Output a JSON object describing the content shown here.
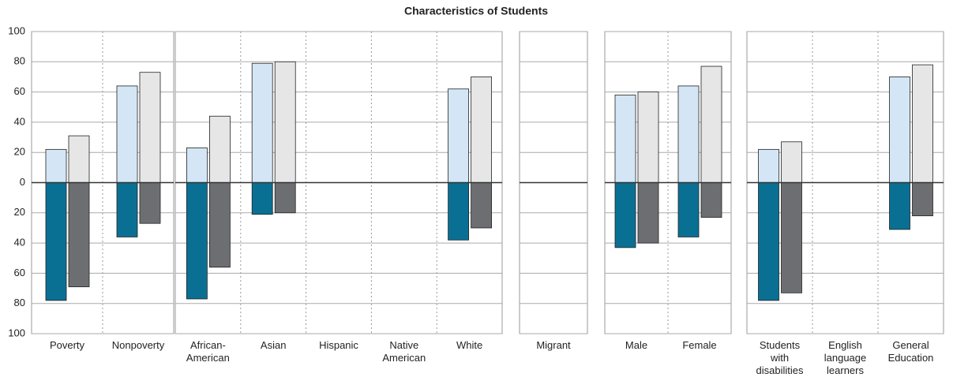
{
  "chart_data": {
    "type": "bar",
    "title": "Characteristics of Students",
    "ylim": [
      -100,
      100
    ],
    "yticks": [
      {
        "value": -100,
        "label": "100"
      },
      {
        "value": -80,
        "label": "80"
      },
      {
        "value": -60,
        "label": "60"
      },
      {
        "value": -40,
        "label": "40"
      },
      {
        "value": -20,
        "label": "20"
      },
      0,
      20,
      40,
      60,
      80,
      100
    ],
    "grid": true,
    "panels": [
      {
        "categories": [
          "Poverty",
          "Nonpoverty"
        ],
        "series": [
          {
            "color": "#d4e6f5",
            "values": [
              22,
              64
            ]
          },
          {
            "color": "#e6e6e6",
            "values": [
              31,
              73
            ]
          },
          {
            "color": "#0a7093",
            "values": [
              -78,
              -36
            ]
          },
          {
            "color": "#6d6e71",
            "values": [
              -69,
              -27
            ]
          }
        ]
      },
      {
        "categories": [
          "African-American",
          "Asian",
          "Hispanic",
          "Native American",
          "White"
        ],
        "series": [
          {
            "color": "#d4e6f5",
            "values": [
              23,
              79,
              null,
              null,
              62
            ]
          },
          {
            "color": "#e6e6e6",
            "values": [
              44,
              80,
              null,
              null,
              70
            ]
          },
          {
            "color": "#0a7093",
            "values": [
              -77,
              -21,
              null,
              null,
              -38
            ]
          },
          {
            "color": "#6d6e71",
            "values": [
              -56,
              -20,
              null,
              null,
              -30
            ]
          }
        ]
      },
      {
        "categories": [
          "Migrant"
        ],
        "series": [
          {
            "color": "#d4e6f5",
            "values": [
              null
            ]
          },
          {
            "color": "#e6e6e6",
            "values": [
              null
            ]
          },
          {
            "color": "#0a7093",
            "values": [
              null
            ]
          },
          {
            "color": "#6d6e71",
            "values": [
              null
            ]
          }
        ]
      },
      {
        "categories": [
          "Male",
          "Female"
        ],
        "series": [
          {
            "color": "#d4e6f5",
            "values": [
              58,
              64
            ]
          },
          {
            "color": "#e6e6e6",
            "values": [
              60,
              77
            ]
          },
          {
            "color": "#0a7093",
            "values": [
              -43,
              -36
            ]
          },
          {
            "color": "#6d6e71",
            "values": [
              -40,
              -23
            ]
          }
        ]
      },
      {
        "categories": [
          "Students with disabilities",
          "English language learners",
          "General Education"
        ],
        "series": [
          {
            "color": "#d4e6f5",
            "values": [
              22,
              null,
              70
            ]
          },
          {
            "color": "#e6e6e6",
            "values": [
              27,
              null,
              78
            ]
          },
          {
            "color": "#0a7093",
            "values": [
              -78,
              null,
              -31
            ]
          },
          {
            "color": "#6d6e71",
            "values": [
              -73,
              null,
              -22
            ]
          }
        ]
      }
    ]
  }
}
